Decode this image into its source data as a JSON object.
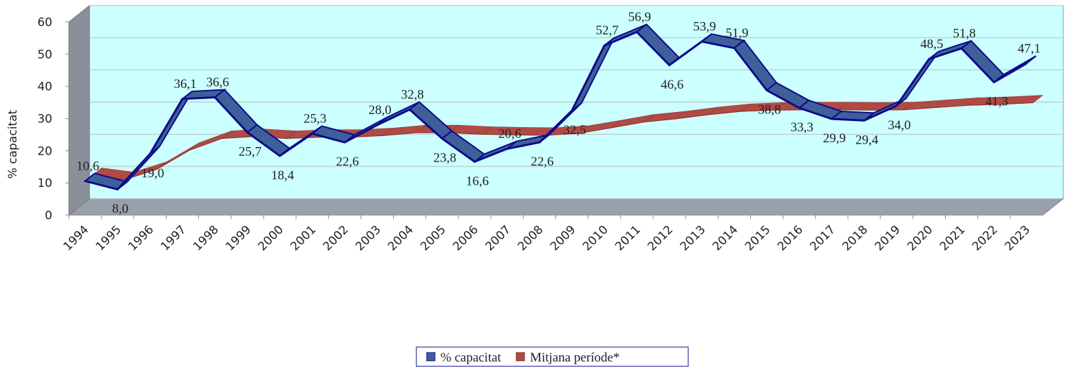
{
  "chart_data": {
    "type": "line3d",
    "ylabel": "% capacitat",
    "categories": [
      "1994",
      "1995",
      "1996",
      "1997",
      "1998",
      "1999",
      "2000",
      "2001",
      "2002",
      "2003",
      "2004",
      "2005",
      "2006",
      "2007",
      "2008",
      "2009",
      "2010",
      "2011",
      "2012",
      "2013",
      "2014",
      "2015",
      "2016",
      "2017",
      "2018",
      "2019",
      "2020",
      "2021",
      "2022",
      "2023"
    ],
    "series": [
      {
        "name": "% capacitat",
        "color": "#3f5f9a",
        "edge": "#0b0b8a",
        "values": [
          10.6,
          8.0,
          19.0,
          36.1,
          36.6,
          25.7,
          18.4,
          25.3,
          22.6,
          28.0,
          32.8,
          23.8,
          16.6,
          20.6,
          22.6,
          32.5,
          52.7,
          56.9,
          46.6,
          53.9,
          51.9,
          38.8,
          33.3,
          29.9,
          29.4,
          34.0,
          48.5,
          51.8,
          41.3,
          47.1
        ],
        "value_labels": [
          "10,6",
          "8,0",
          "19,0",
          "36,1",
          "36,6",
          "25,7",
          "18,4",
          "25,3",
          "22,6",
          "28,0",
          "32,8",
          "23,8",
          "16,6",
          "20,6",
          "22,6",
          "32,5",
          "52,7",
          "56,9",
          "46,6",
          "53,9",
          "51,9",
          "38,8",
          "33,3",
          "29,9",
          "29,4",
          "34,0",
          "48,5",
          "51,8",
          "41,3",
          "47,1"
        ]
      },
      {
        "name": "Mitjana període*",
        "color": "#b04a45",
        "edge": "#8a2c28",
        "values": [
          10.6,
          9.3,
          12.5,
          18.4,
          22.1,
          22.7,
          22.1,
          22.5,
          22.5,
          23.0,
          23.9,
          23.9,
          23.4,
          23.2,
          23.1,
          23.7,
          25.4,
          27.2,
          28.2,
          29.5,
          30.5,
          30.9,
          31.0,
          31.0,
          30.9,
          31.0,
          31.7,
          32.4,
          32.7,
          33.2
        ]
      }
    ],
    "ylim": [
      0,
      60
    ],
    "yticks": [
      0,
      10,
      20,
      30,
      40,
      50,
      60
    ],
    "grid": true,
    "legend": "bottom"
  }
}
